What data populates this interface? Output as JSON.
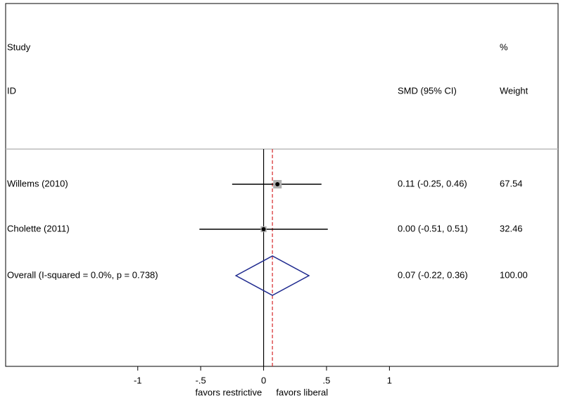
{
  "chart_data": {
    "type": "forest",
    "headers": {
      "study": "Study",
      "id": "ID",
      "effect": "SMD (95% CI)",
      "weight_top": "%",
      "weight": "Weight"
    },
    "studies": [
      {
        "label": "Willems (2010)",
        "estimate": 0.11,
        "lower": -0.25,
        "upper": 0.46,
        "ci_label": "0.11 (-0.25, 0.46)",
        "weight": 67.54
      },
      {
        "label": "Cholette (2011)",
        "estimate": 0.0,
        "lower": -0.51,
        "upper": 0.51,
        "ci_label": "0.00 (-0.51, 0.51)",
        "weight": 32.46
      }
    ],
    "overall": {
      "label": "Overall  (I-squared = 0.0%, p = 0.738)",
      "estimate": 0.07,
      "lower": -0.22,
      "upper": 0.36,
      "ci_label": "0.07 (-0.22, 0.36)",
      "weight": 100.0,
      "weight_label": "100.00"
    },
    "xlim": [
      -2.05,
      2.34
    ],
    "xticks": [
      -1,
      {
        "value": -0.5,
        "label": "-.5"
      },
      0,
      {
        "value": 0.5,
        "label": ".5"
      },
      1
    ],
    "null_value": 0,
    "axis_annotations": {
      "left": "favors restrictive",
      "right": "favors liberal"
    },
    "ci_color": "#000000",
    "square_color": "#b0b0b0",
    "diamond_color": "#1f2a8f",
    "reference_line_color": "#d62728"
  }
}
